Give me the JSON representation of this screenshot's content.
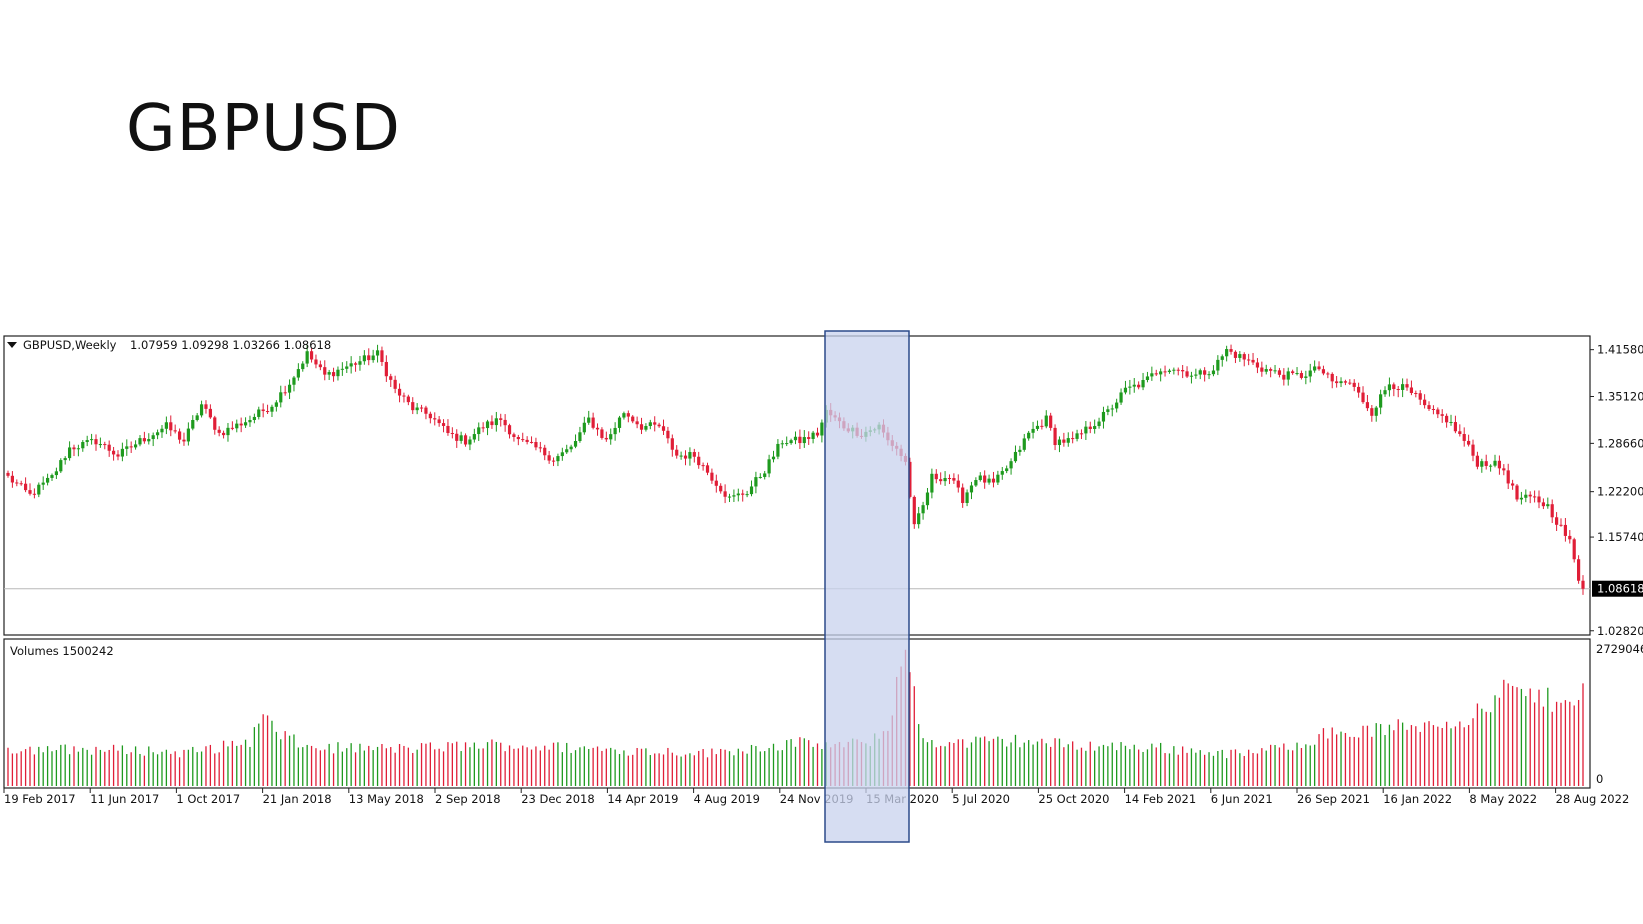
{
  "slide": {
    "title": "GBPUSD"
  },
  "colors": {
    "up": "#1e9a1e",
    "down": "#e01e37",
    "highlight_fill": "#c8d2ee",
    "highlight_stroke": "#2b4a8a",
    "price_line": "#b8b8b8"
  },
  "chart_data": {
    "type": "candlestick",
    "symbol": "GBPUSD",
    "timeframe": "Weekly",
    "header": {
      "label": "GBPUSD,Weekly",
      "ohlc": "1.07959 1.09298 1.03266 1.08618"
    },
    "current_price": 1.08618,
    "current_price_label": "1.08618",
    "price_axis": {
      "range": [
        1.0265,
        1.4305
      ],
      "ticks": [
        "1.41580",
        "1.35120",
        "1.28660",
        "1.22200",
        "1.15740",
        "1.08618",
        "1.02820"
      ]
    },
    "price_ticks": [
      1.4158,
      1.3512,
      1.2866,
      1.22,
      1.1574,
      1.0282
    ],
    "price_path": [
      [
        0,
        1.24
      ],
      [
        5,
        1.215
      ],
      [
        10,
        1.24
      ],
      [
        14,
        1.28
      ],
      [
        20,
        1.29
      ],
      [
        25,
        1.27
      ],
      [
        30,
        1.29
      ],
      [
        36,
        1.31
      ],
      [
        40,
        1.29
      ],
      [
        44,
        1.34
      ],
      [
        48,
        1.3
      ],
      [
        55,
        1.32
      ],
      [
        60,
        1.34
      ],
      [
        64,
        1.37
      ],
      [
        68,
        1.41
      ],
      [
        72,
        1.38
      ],
      [
        76,
        1.39
      ],
      [
        80,
        1.4
      ],
      [
        84,
        1.41
      ],
      [
        88,
        1.36
      ],
      [
        92,
        1.335
      ],
      [
        96,
        1.325
      ],
      [
        100,
        1.3
      ],
      [
        104,
        1.29
      ],
      [
        108,
        1.31
      ],
      [
        112,
        1.32
      ],
      [
        116,
        1.29
      ],
      [
        120,
        1.28
      ],
      [
        124,
        1.265
      ],
      [
        128,
        1.28
      ],
      [
        132,
        1.32
      ],
      [
        136,
        1.29
      ],
      [
        140,
        1.33
      ],
      [
        144,
        1.31
      ],
      [
        148,
        1.31
      ],
      [
        152,
        1.27
      ],
      [
        156,
        1.27
      ],
      [
        160,
        1.24
      ],
      [
        164,
        1.21
      ],
      [
        168,
        1.22
      ],
      [
        172,
        1.25
      ],
      [
        176,
        1.29
      ],
      [
        180,
        1.29
      ],
      [
        184,
        1.3
      ],
      [
        186,
        1.33
      ],
      [
        190,
        1.31
      ],
      [
        194,
        1.3
      ],
      [
        198,
        1.31
      ],
      [
        200,
        1.29
      ],
      [
        202,
        1.28
      ],
      [
        204,
        1.26
      ],
      [
        206,
        1.17
      ],
      [
        208,
        1.2
      ],
      [
        210,
        1.24
      ],
      [
        214,
        1.24
      ],
      [
        217,
        1.21
      ],
      [
        220,
        1.24
      ],
      [
        224,
        1.23
      ],
      [
        228,
        1.26
      ],
      [
        232,
        1.3
      ],
      [
        236,
        1.32
      ],
      [
        238,
        1.29
      ],
      [
        242,
        1.29
      ],
      [
        246,
        1.31
      ],
      [
        250,
        1.33
      ],
      [
        254,
        1.36
      ],
      [
        258,
        1.37
      ],
      [
        262,
        1.39
      ],
      [
        265,
        1.39
      ],
      [
        270,
        1.38
      ],
      [
        274,
        1.39
      ],
      [
        277,
        1.415
      ],
      [
        282,
        1.4
      ],
      [
        285,
        1.39
      ],
      [
        290,
        1.38
      ],
      [
        294,
        1.38
      ],
      [
        298,
        1.39
      ],
      [
        301,
        1.37
      ],
      [
        305,
        1.37
      ],
      [
        310,
        1.33
      ],
      [
        314,
        1.37
      ],
      [
        318,
        1.36
      ],
      [
        320,
        1.35
      ],
      [
        323,
        1.33
      ],
      [
        327,
        1.32
      ],
      [
        331,
        1.29
      ],
      [
        334,
        1.26
      ],
      [
        337,
        1.26
      ],
      [
        340,
        1.25
      ],
      [
        343,
        1.21
      ],
      [
        347,
        1.21
      ],
      [
        350,
        1.2
      ],
      [
        353,
        1.17
      ],
      [
        355,
        1.15
      ],
      [
        357,
        1.1
      ],
      [
        358,
        1.08618
      ]
    ],
    "volume_path": [
      [
        0,
        0.27
      ],
      [
        30,
        0.26
      ],
      [
        40,
        0.24
      ],
      [
        48,
        0.28
      ],
      [
        55,
        0.33
      ],
      [
        58,
        0.5
      ],
      [
        62,
        0.37
      ],
      [
        68,
        0.28
      ],
      [
        90,
        0.27
      ],
      [
        110,
        0.3
      ],
      [
        140,
        0.26
      ],
      [
        160,
        0.24
      ],
      [
        170,
        0.28
      ],
      [
        180,
        0.31
      ],
      [
        190,
        0.29
      ],
      [
        198,
        0.34
      ],
      [
        201,
        0.52
      ],
      [
        203,
        1.0
      ],
      [
        205,
        0.8
      ],
      [
        208,
        0.33
      ],
      [
        215,
        0.31
      ],
      [
        230,
        0.33
      ],
      [
        240,
        0.3
      ],
      [
        260,
        0.28
      ],
      [
        280,
        0.23
      ],
      [
        290,
        0.28
      ],
      [
        300,
        0.38
      ],
      [
        310,
        0.4
      ],
      [
        320,
        0.44
      ],
      [
        330,
        0.48
      ],
      [
        336,
        0.54
      ],
      [
        340,
        0.7
      ],
      [
        350,
        0.62
      ],
      [
        358,
        0.68
      ]
    ],
    "volume": {
      "header": "Volumes 1500242",
      "max": 2729046,
      "ticks": [
        "2729046",
        "0"
      ]
    },
    "time_axis": {
      "labels": [
        "19 Feb 2017",
        "11 Jun 2017",
        "1 Oct 2017",
        "21 Jan 2018",
        "13 May 2018",
        "2 Sep 2018",
        "23 Dec 2018",
        "14 Apr 2019",
        "4 Aug 2019",
        "24 Nov 2019",
        "15 Mar 2020",
        "5 Jul 2020",
        "25 Oct 2020",
        "14 Feb 2021",
        "6 Jun 2021",
        "26 Sep 2021",
        "16 Jan 2022",
        "8 May 2022",
        "28 Aug 2022"
      ]
    },
    "highlight": {
      "from": "24 Nov 2019",
      "to": "15 Mar 2020"
    }
  }
}
